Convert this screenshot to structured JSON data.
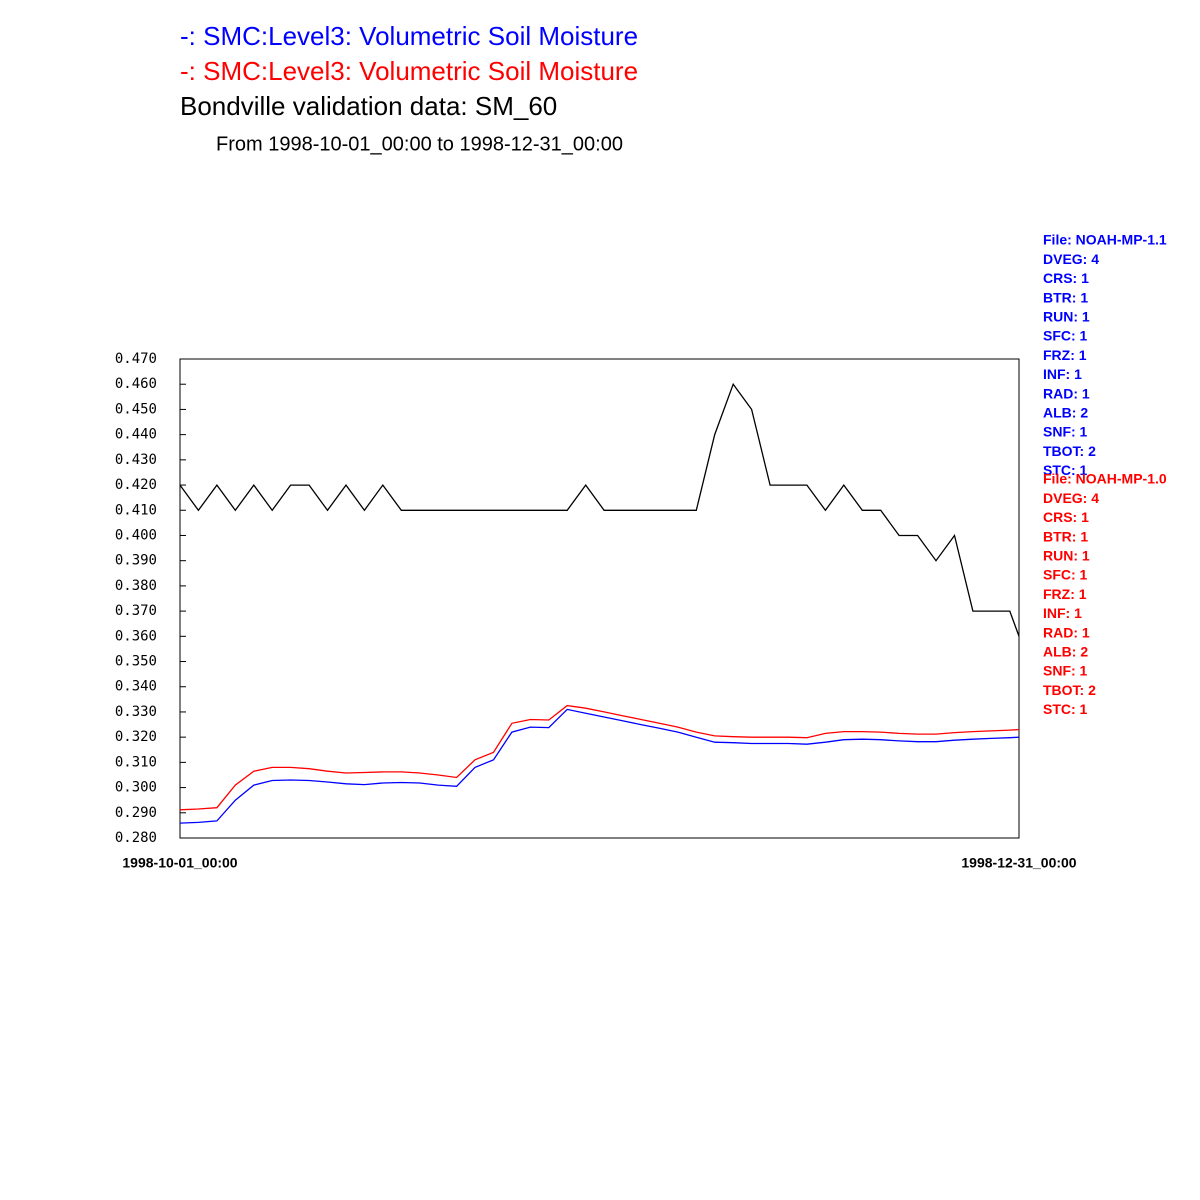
{
  "chart_data": {
    "type": "line",
    "legend_lines": [
      {
        "text": "-:  SMC:Level3: Volumetric Soil Moisture",
        "color": "#0000ff"
      },
      {
        "text": "-:  SMC:Level3: Volumetric Soil Moisture",
        "color": "#ff0000"
      }
    ],
    "title": "Bondville validation data:  SM_60",
    "subtitle": "From 1998-10-01_00:00 to 1998-12-31_00:00",
    "x": [
      "1998-10-01_00:00",
      "1998-10-03_00:00",
      "1998-10-05_00:00",
      "1998-10-07_00:00",
      "1998-10-09_00:00",
      "1998-10-11_00:00",
      "1998-10-13_00:00",
      "1998-10-15_00:00",
      "1998-10-17_00:00",
      "1998-10-19_00:00",
      "1998-10-21_00:00",
      "1998-10-23_00:00",
      "1998-10-25_00:00",
      "1998-10-27_00:00",
      "1998-10-29_00:00",
      "1998-10-31_00:00",
      "1998-11-02_00:00",
      "1998-11-04_00:00",
      "1998-11-06_00:00",
      "1998-11-08_00:00",
      "1998-11-10_00:00",
      "1998-11-12_00:00",
      "1998-11-14_00:00",
      "1998-11-16_00:00",
      "1998-11-18_00:00",
      "1998-11-20_00:00",
      "1998-11-22_00:00",
      "1998-11-24_00:00",
      "1998-11-26_00:00",
      "1998-11-28_00:00",
      "1998-11-30_00:00",
      "1998-12-02_00:00",
      "1998-12-04_00:00",
      "1998-12-06_00:00",
      "1998-12-08_00:00",
      "1998-12-10_00:00",
      "1998-12-12_00:00",
      "1998-12-14_00:00",
      "1998-12-16_00:00",
      "1998-12-18_00:00",
      "1998-12-20_00:00",
      "1998-12-22_00:00",
      "1998-12-24_00:00",
      "1998-12-26_00:00",
      "1998-12-28_00:00",
      "1998-12-30_00:00",
      "1998-12-31_00:00"
    ],
    "series": [
      {
        "color": "#0000ff",
        "values": [
          0.2859,
          0.2862,
          0.2868,
          0.295,
          0.301,
          0.3028,
          0.303,
          0.3028,
          0.3022,
          0.3015,
          0.3012,
          0.3018,
          0.302,
          0.3018,
          0.301,
          0.3005,
          0.308,
          0.311,
          0.322,
          0.324,
          0.3238,
          0.331,
          0.3295,
          0.328,
          0.3265,
          0.325,
          0.3235,
          0.322,
          0.32,
          0.318,
          0.3178,
          0.3175,
          0.3175,
          0.3175,
          0.3172,
          0.318,
          0.319,
          0.3192,
          0.319,
          0.3185,
          0.3182,
          0.3182,
          0.3188,
          0.3192,
          0.3195,
          0.3198,
          0.32
        ]
      },
      {
        "color": "#ff0000",
        "values": [
          0.2912,
          0.2915,
          0.292,
          0.301,
          0.3065,
          0.308,
          0.308,
          0.3075,
          0.3065,
          0.3058,
          0.306,
          0.3062,
          0.3062,
          0.3058,
          0.305,
          0.304,
          0.311,
          0.314,
          0.3255,
          0.327,
          0.3268,
          0.3325,
          0.3315,
          0.33,
          0.3285,
          0.327,
          0.3255,
          0.324,
          0.322,
          0.3205,
          0.3202,
          0.32,
          0.32,
          0.32,
          0.3198,
          0.3215,
          0.3222,
          0.3222,
          0.322,
          0.3215,
          0.3212,
          0.3212,
          0.3218,
          0.3222,
          0.3225,
          0.3228,
          0.323
        ]
      },
      {
        "color": "#000000",
        "values": [
          0.42,
          0.41,
          0.42,
          0.41,
          0.42,
          0.41,
          0.42,
          0.42,
          0.41,
          0.42,
          0.41,
          0.42,
          0.41,
          0.41,
          0.41,
          0.41,
          0.41,
          0.41,
          0.41,
          0.41,
          0.41,
          0.41,
          0.42,
          0.41,
          0.41,
          0.41,
          0.41,
          0.41,
          0.41,
          0.44,
          0.46,
          0.45,
          0.42,
          0.42,
          0.42,
          0.41,
          0.42,
          0.41,
          0.41,
          0.4,
          0.4,
          0.39,
          0.4,
          0.37,
          0.37,
          0.37,
          0.36
        ]
      }
    ],
    "xlim": [
      "1998-10-01_00:00",
      "1998-12-31_00:00"
    ],
    "xticks": [
      "1998-10-01_00:00",
      "1998-12-31_00:00"
    ],
    "ylim": [
      0.28,
      0.47
    ],
    "yticks": [
      {
        "value": 0.47,
        "label": "0.470"
      },
      {
        "value": 0.46,
        "label": "0.460"
      },
      {
        "value": 0.45,
        "label": "0.450"
      },
      {
        "value": 0.44,
        "label": "0.440"
      },
      {
        "value": 0.43,
        "label": "0.430"
      },
      {
        "value": 0.42,
        "label": "0.420"
      },
      {
        "value": 0.41,
        "label": "0.410"
      },
      {
        "value": 0.4,
        "label": "0.400"
      },
      {
        "value": 0.39,
        "label": "0.390"
      },
      {
        "value": 0.38,
        "label": "0.380"
      },
      {
        "value": 0.37,
        "label": "0.370"
      },
      {
        "value": 0.36,
        "label": "0.360"
      },
      {
        "value": 0.35,
        "label": "0.350"
      },
      {
        "value": 0.34,
        "label": "0.340"
      },
      {
        "value": 0.33,
        "label": "0.330"
      },
      {
        "value": 0.32,
        "label": "0.320"
      },
      {
        "value": 0.31,
        "label": "0.310"
      },
      {
        "value": 0.3,
        "label": "0.300"
      },
      {
        "value": 0.29,
        "label": "0.290"
      },
      {
        "value": 0.28,
        "label": "0.280"
      }
    ],
    "grid": false,
    "annotations": [
      {
        "color": "#0000ff",
        "lines": [
          "File: NOAH-MP-1.1",
          "DVEG: 4",
          "CRS: 1",
          "BTR: 1",
          "RUN: 1",
          "SFC: 1",
          "FRZ: 1",
          "INF: 1",
          "RAD: 1",
          "ALB: 2",
          "SNF: 1",
          "TBOT: 2",
          "STC: 1"
        ]
      },
      {
        "color": "#ff0000",
        "lines": [
          "File: NOAH-MP-1.0",
          "DVEG: 4",
          "CRS: 1",
          "BTR: 1",
          "RUN: 1",
          "SFC: 1",
          "FRZ: 1",
          "INF: 1",
          "RAD: 1",
          "ALB: 2",
          "SNF: 1",
          "TBOT: 2",
          "STC: 1"
        ]
      }
    ]
  }
}
